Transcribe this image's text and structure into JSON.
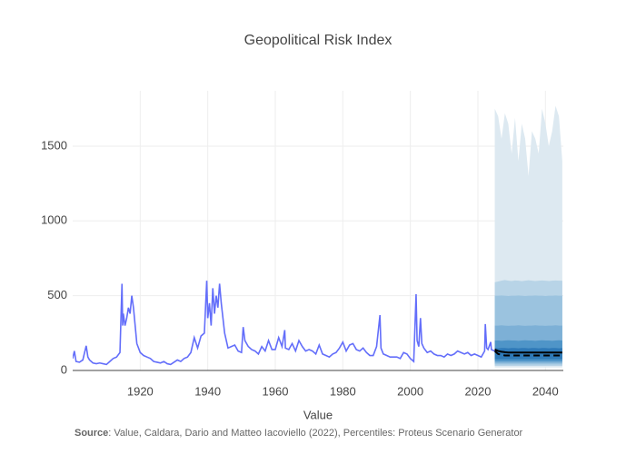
{
  "chart_data": {
    "type": "fan",
    "title": "Geopolitical Risk Index",
    "x_label": "Value",
    "source_label": "Source",
    "source_text": ": Value, Caldara, Dario and Matteo Iacoviello (2022), Percentiles: Proteus Scenario Generator",
    "xlim": [
      1900,
      2045.3
    ],
    "ylim": [
      0,
      1870
    ],
    "xticks": [
      1920,
      1940,
      1960,
      1980,
      2000,
      2020,
      2040
    ],
    "yticks": [
      0,
      500,
      1000,
      1500
    ],
    "grid": true,
    "series": [
      {
        "color": "#636efa",
        "x": [
          1900,
          1900.5,
          1901,
          1902,
          1903,
          1904,
          1904.5,
          1905,
          1906,
          1907,
          1908,
          1909,
          1910,
          1911,
          1912,
          1913,
          1914,
          1914.6,
          1914.8,
          1915,
          1915.5,
          1916,
          1916.5,
          1917,
          1917.5,
          1918,
          1918.5,
          1919,
          1920,
          1921,
          1922,
          1923,
          1924,
          1925,
          1926,
          1927,
          1928,
          1929,
          1930,
          1931,
          1932,
          1933,
          1934,
          1935,
          1936,
          1937,
          1938,
          1939,
          1939.7,
          1940,
          1940.5,
          1941,
          1941.5,
          1942,
          1942.5,
          1943,
          1943.5,
          1944,
          1944.5,
          1945,
          1945.5,
          1946,
          1947,
          1948,
          1949,
          1950,
          1950.5,
          1951,
          1952,
          1953,
          1954,
          1955,
          1956,
          1957,
          1958,
          1959,
          1960,
          1961,
          1962,
          1962.8,
          1963,
          1964,
          1965,
          1966,
          1967,
          1968,
          1969,
          1970,
          1971,
          1972,
          1973,
          1974,
          1975,
          1976,
          1977,
          1978,
          1979,
          1980,
          1981,
          1982,
          1983,
          1984,
          1985,
          1986,
          1987,
          1988,
          1989,
          1990,
          1991,
          1991.3,
          1992,
          1993,
          1994,
          1995,
          1996,
          1997,
          1998,
          1999,
          2000,
          2001,
          2001.7,
          2002,
          2002.5,
          2003,
          2003.4,
          2004,
          2005,
          2006,
          2007,
          2008,
          2009,
          2010,
          2011,
          2012,
          2013,
          2014,
          2015,
          2016,
          2017,
          2018,
          2019,
          2020,
          2021,
          2022,
          2022.2,
          2022.6,
          2023,
          2023.8,
          2024,
          2025
        ],
        "values": [
          80,
          130,
          60,
          55,
          70,
          165,
          90,
          70,
          50,
          45,
          50,
          45,
          40,
          60,
          80,
          90,
          120,
          580,
          300,
          380,
          300,
          350,
          420,
          380,
          500,
          420,
          300,
          180,
          120,
          100,
          90,
          80,
          60,
          55,
          50,
          60,
          45,
          40,
          55,
          70,
          60,
          80,
          90,
          120,
          220,
          150,
          230,
          250,
          600,
          350,
          450,
          300,
          550,
          380,
          500,
          420,
          580,
          450,
          350,
          250,
          200,
          150,
          160,
          170,
          130,
          120,
          290,
          200,
          160,
          140,
          130,
          110,
          160,
          130,
          200,
          140,
          140,
          220,
          160,
          270,
          150,
          140,
          180,
          130,
          200,
          160,
          130,
          140,
          130,
          110,
          170,
          110,
          100,
          90,
          110,
          120,
          150,
          190,
          130,
          170,
          180,
          140,
          130,
          150,
          120,
          100,
          100,
          160,
          370,
          150,
          110,
          100,
          90,
          90,
          90,
          80,
          120,
          110,
          80,
          60,
          510,
          200,
          160,
          350,
          180,
          150,
          120,
          130,
          110,
          100,
          100,
          90,
          110,
          100,
          110,
          130,
          120,
          110,
          120,
          100,
          110,
          100,
          90,
          130,
          310,
          150,
          140,
          190,
          140,
          130
        ]
      }
    ],
    "forecast_x": [
      2025,
      2026,
      2027,
      2028,
      2029,
      2030,
      2031,
      2032,
      2033,
      2034,
      2035,
      2036,
      2037,
      2038,
      2039,
      2040,
      2041,
      2042,
      2043,
      2044,
      2045
    ],
    "bands": [
      {
        "color": "#dde9f1",
        "lower": [
          20,
          20,
          20,
          20,
          20,
          20,
          20,
          20,
          20,
          20,
          20,
          20,
          20,
          20,
          20,
          20,
          20,
          20,
          20,
          20,
          20
        ],
        "upper": [
          1750,
          1700,
          1550,
          1720,
          1650,
          1450,
          1690,
          1400,
          1650,
          1550,
          1300,
          1600,
          1550,
          1450,
          1750,
          1650,
          1500,
          1600,
          1770,
          1700,
          1400
        ]
      },
      {
        "color": "#b8d4e7",
        "lower": [
          30,
          30,
          30,
          30,
          30,
          30,
          30,
          30,
          30,
          30,
          30,
          30,
          30,
          30,
          30,
          30,
          30,
          30,
          30,
          30,
          30
        ],
        "upper": [
          590,
          595,
          600,
          605,
          600,
          598,
          602,
          600,
          597,
          600,
          603,
          600,
          598,
          600,
          602,
          600,
          598,
          600,
          602,
          600,
          600
        ]
      },
      {
        "color": "#9bc3df",
        "lower": [
          40,
          40,
          40,
          40,
          40,
          40,
          40,
          40,
          40,
          40,
          40,
          40,
          40,
          40,
          40,
          40,
          40,
          40,
          40,
          40,
          40
        ],
        "upper": [
          500,
          500,
          502,
          500,
          498,
          500,
          500,
          502,
          500,
          498,
          500,
          500,
          502,
          500,
          500,
          498,
          500,
          500,
          502,
          500,
          500
        ]
      },
      {
        "color": "#7db0d6",
        "lower": [
          50,
          50,
          50,
          50,
          50,
          50,
          50,
          50,
          50,
          50,
          50,
          50,
          50,
          50,
          50,
          50,
          50,
          50,
          50,
          50,
          50
        ],
        "upper": [
          300,
          300,
          302,
          300,
          298,
          300,
          300,
          302,
          300,
          298,
          300,
          300,
          302,
          300,
          300,
          298,
          300,
          300,
          302,
          300,
          300
        ]
      },
      {
        "color": "#4f95c8",
        "lower": [
          60,
          60,
          60,
          60,
          60,
          60,
          60,
          60,
          60,
          60,
          60,
          60,
          60,
          60,
          60,
          60,
          60,
          60,
          60,
          60,
          60
        ],
        "upper": [
          200,
          200,
          198,
          200,
          202,
          200,
          200,
          198,
          200,
          202,
          200,
          200,
          198,
          200,
          202,
          200,
          200,
          198,
          200,
          202,
          200
        ]
      },
      {
        "color": "#2f7ab8",
        "lower": [
          75,
          75,
          75,
          75,
          75,
          75,
          75,
          75,
          75,
          75,
          75,
          75,
          75,
          75,
          75,
          75,
          75,
          75,
          75,
          75,
          75
        ],
        "upper": [
          150,
          148,
          150,
          150,
          148,
          150,
          150,
          148,
          150,
          150,
          148,
          150,
          150,
          148,
          150,
          150,
          148,
          150,
          150,
          148,
          150
        ]
      }
    ],
    "lines": [
      {
        "color": "#000000",
        "dash": false,
        "values": [
          140,
          130,
          125,
          122,
          120,
          120,
          120,
          120,
          120,
          120,
          120,
          120,
          120,
          120,
          120,
          120,
          120,
          120,
          120,
          120,
          120
        ]
      },
      {
        "color": "#000000",
        "dash": true,
        "values": [
          130,
          110,
          105,
          100,
          100,
          100,
          100,
          100,
          100,
          100,
          100,
          100,
          100,
          100,
          100,
          100,
          100,
          100,
          100,
          100,
          100
        ]
      }
    ]
  }
}
